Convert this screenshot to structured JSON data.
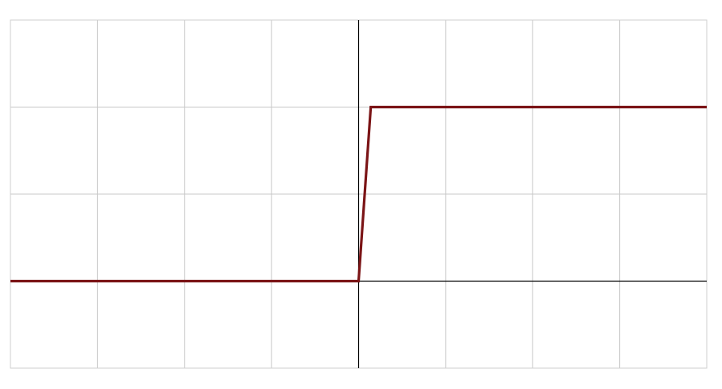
{
  "chart_data": {
    "type": "line",
    "title": "",
    "xlabel": "",
    "ylabel": "",
    "xlim": [
      -4,
      4
    ],
    "ylim": [
      -1,
      3
    ],
    "x_gridlines": [
      -4,
      -3,
      -2,
      -1,
      0,
      1,
      2,
      3,
      4
    ],
    "y_gridlines": [
      -1,
      0,
      1,
      2,
      3
    ],
    "grid": true,
    "axes_through_origin": true,
    "series": [
      {
        "color": "#7b1416",
        "x": [
          -4,
          0,
          0.14,
          4
        ],
        "y": [
          0,
          0,
          2,
          2
        ]
      }
    ]
  },
  "colors": {
    "grid": "#c8c8c8",
    "axis": "#000000",
    "series": "#7b1416",
    "background": "#ffffff"
  }
}
